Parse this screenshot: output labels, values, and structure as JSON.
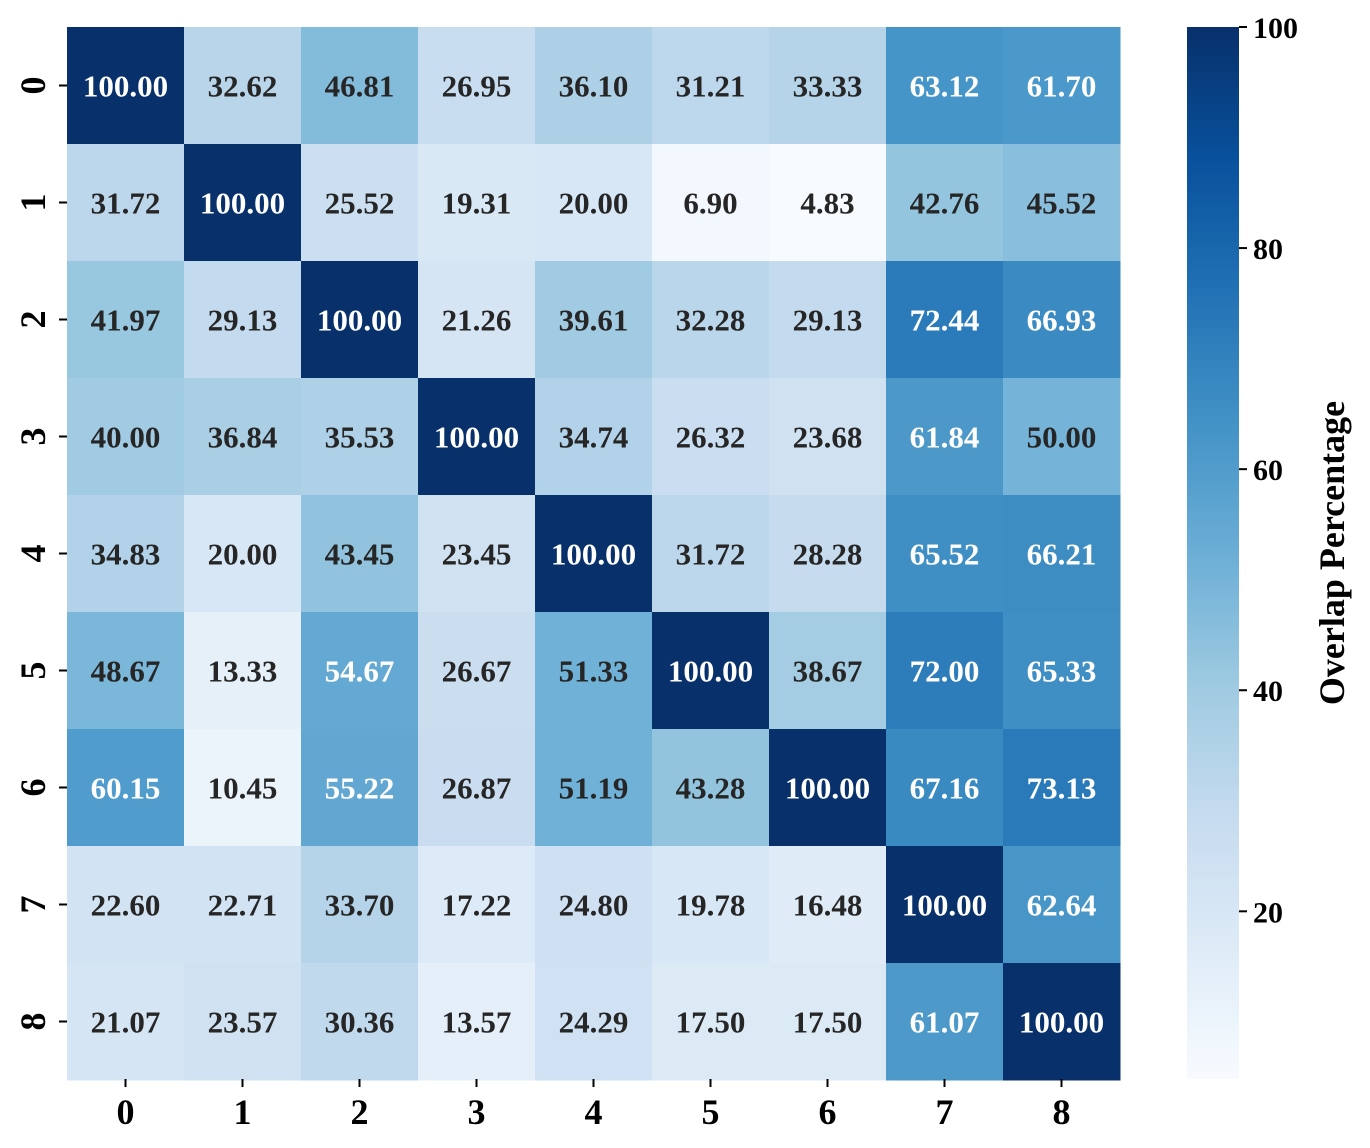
{
  "chart_data": {
    "type": "heatmap",
    "title": "",
    "xlabel": "",
    "ylabel": "",
    "x_categories": [
      "0",
      "1",
      "2",
      "3",
      "4",
      "5",
      "6",
      "7",
      "8"
    ],
    "y_categories": [
      "0",
      "1",
      "2",
      "3",
      "4",
      "5",
      "6",
      "7",
      "8"
    ],
    "values": [
      [
        100.0,
        32.62,
        46.81,
        26.95,
        36.1,
        31.21,
        33.33,
        63.12,
        61.7
      ],
      [
        31.72,
        100.0,
        25.52,
        19.31,
        20.0,
        6.9,
        4.83,
        42.76,
        45.52
      ],
      [
        41.97,
        29.13,
        100.0,
        21.26,
        39.61,
        32.28,
        29.13,
        72.44,
        66.93
      ],
      [
        40.0,
        36.84,
        35.53,
        100.0,
        34.74,
        26.32,
        23.68,
        61.84,
        50.0
      ],
      [
        34.83,
        20.0,
        43.45,
        23.45,
        100.0,
        31.72,
        28.28,
        65.52,
        66.21
      ],
      [
        48.67,
        13.33,
        54.67,
        26.67,
        51.33,
        100.0,
        38.67,
        72.0,
        65.33
      ],
      [
        60.15,
        10.45,
        55.22,
        26.87,
        51.19,
        43.28,
        100.0,
        67.16,
        73.13
      ],
      [
        22.6,
        22.71,
        33.7,
        17.22,
        24.8,
        19.78,
        16.48,
        100.0,
        62.64
      ],
      [
        21.07,
        23.57,
        30.36,
        13.57,
        24.29,
        17.5,
        17.5,
        61.07,
        100.0
      ]
    ],
    "value_format": "2 decimals",
    "colormap": "Blues",
    "colorbar": {
      "label": "Overlap Percentage",
      "range": [
        4.83,
        100
      ],
      "ticks": [
        20,
        40,
        60,
        80,
        100
      ]
    },
    "grid": false,
    "legend": "colorbar-right"
  }
}
